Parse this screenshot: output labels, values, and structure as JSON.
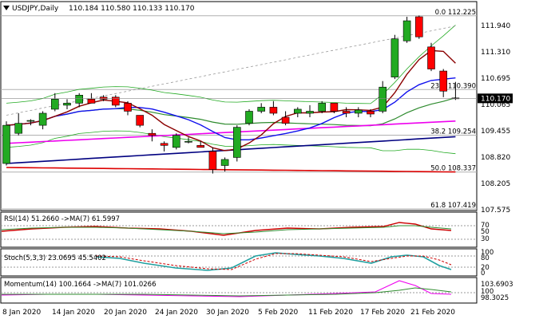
{
  "header": {
    "symbol": "USDJPY,Daily",
    "ohlc": "110.184 110.580 110.133 110.170",
    "collapse_icon": "triangle-down-icon"
  },
  "price_axis": {
    "ticks": [
      "111.940",
      "111.310",
      "110.695",
      "110.065",
      "109.455",
      "108.820",
      "108.205",
      "107.575"
    ],
    "current_price": "110.170",
    "current_price_color": "#000000"
  },
  "fibonacci": [
    {
      "label": "0.0 112.225",
      "price": 112.225
    },
    {
      "label": "23.6 110.390",
      "price": 110.39
    },
    {
      "label": "38.2 109.254",
      "price": 109.254
    },
    {
      "label": "50.0 108.337",
      "price": 108.337
    },
    {
      "label": "61.8 107.419",
      "price": 107.419
    }
  ],
  "x_axis": {
    "labels": [
      "8 Jan 2020",
      "14 Jan 2020",
      "20 Jan 2020",
      "24 Jan 2020",
      "30 Jan 2020",
      "5 Feb 2020",
      "11 Feb 2020",
      "17 Feb 2020",
      "21 Feb 2020"
    ]
  },
  "rsi": {
    "label": "RSI(14) 51.2660  ->MA(7) 61.5997",
    "ticks": [
      "70",
      "50",
      "30"
    ]
  },
  "stoch": {
    "label": "Stoch(5,3,3) 23.0695 45.5402",
    "ticks": [
      "100",
      "80",
      "20",
      "0"
    ]
  },
  "momentum": {
    "label": "Momentum(14) 100.1664  ->MA(7) 101.0266",
    "ticks": [
      "103.6903",
      "100",
      "98.3025"
    ]
  },
  "colors": {
    "bull": "#22aa22",
    "bear": "#ff0000",
    "ma_blue": "#1010ee",
    "ma_darkred": "#8b0000",
    "ma_navy": "#000080",
    "ma_red": "#dd0000",
    "ma_magenta": "#ee00ee",
    "ma_green": "#2e8b2e",
    "ma_violet": "#cc88dd",
    "bollinger": "#22aa22",
    "fib": "#b0b0b0",
    "trend": "#999999",
    "stoch_main": "#20a0a0",
    "stoch_signal": "#cc0000"
  },
  "chart_data": {
    "type": "candlestick",
    "candles": [
      {
        "o": 108.55,
        "h": 109.6,
        "l": 108.5,
        "c": 109.5
      },
      {
        "o": 109.3,
        "h": 109.8,
        "l": 109.25,
        "c": 109.55
      },
      {
        "o": 109.6,
        "h": 109.65,
        "l": 109.5,
        "c": 109.62
      },
      {
        "o": 109.5,
        "h": 109.85,
        "l": 109.4,
        "c": 109.8
      },
      {
        "o": 109.9,
        "h": 110.3,
        "l": 109.85,
        "c": 110.15
      },
      {
        "o": 110.0,
        "h": 110.15,
        "l": 109.9,
        "c": 110.05
      },
      {
        "o": 110.05,
        "h": 110.3,
        "l": 109.95,
        "c": 110.25
      },
      {
        "o": 110.15,
        "h": 110.3,
        "l": 110.05,
        "c": 110.05
      },
      {
        "o": 110.2,
        "h": 110.25,
        "l": 110.1,
        "c": 110.15
      },
      {
        "o": 110.2,
        "h": 110.25,
        "l": 109.95,
        "c": 110.0
      },
      {
        "o": 110.05,
        "h": 110.1,
        "l": 109.75,
        "c": 109.85
      },
      {
        "o": 109.75,
        "h": 109.75,
        "l": 109.45,
        "c": 109.5
      },
      {
        "o": 109.3,
        "h": 109.4,
        "l": 109.1,
        "c": 109.25
      },
      {
        "o": 109.05,
        "h": 109.1,
        "l": 108.85,
        "c": 109.0
      },
      {
        "o": 108.95,
        "h": 109.3,
        "l": 108.9,
        "c": 109.25
      },
      {
        "o": 109.1,
        "h": 109.2,
        "l": 109.05,
        "c": 109.1
      },
      {
        "o": 109.0,
        "h": 109.1,
        "l": 108.95,
        "c": 108.95
      },
      {
        "o": 108.85,
        "h": 108.95,
        "l": 108.3,
        "c": 108.4
      },
      {
        "o": 108.5,
        "h": 108.7,
        "l": 108.35,
        "c": 108.65
      },
      {
        "o": 108.7,
        "h": 109.5,
        "l": 108.6,
        "c": 109.45
      },
      {
        "o": 109.55,
        "h": 109.9,
        "l": 109.5,
        "c": 109.85
      },
      {
        "o": 109.85,
        "h": 110.05,
        "l": 109.8,
        "c": 109.95
      },
      {
        "o": 109.95,
        "h": 110.1,
        "l": 109.75,
        "c": 109.8
      },
      {
        "o": 109.7,
        "h": 109.85,
        "l": 109.5,
        "c": 109.55
      },
      {
        "o": 109.8,
        "h": 109.95,
        "l": 109.7,
        "c": 109.9
      },
      {
        "o": 109.8,
        "h": 110.0,
        "l": 109.7,
        "c": 109.85
      },
      {
        "o": 109.85,
        "h": 110.1,
        "l": 109.8,
        "c": 110.05
      },
      {
        "o": 110.05,
        "h": 110.05,
        "l": 109.8,
        "c": 109.85
      },
      {
        "o": 109.85,
        "h": 109.95,
        "l": 109.7,
        "c": 109.8
      },
      {
        "o": 109.8,
        "h": 109.95,
        "l": 109.7,
        "c": 109.88
      },
      {
        "o": 109.85,
        "h": 109.9,
        "l": 109.7,
        "c": 109.78
      },
      {
        "o": 109.85,
        "h": 110.6,
        "l": 109.8,
        "c": 110.45
      },
      {
        "o": 110.7,
        "h": 111.75,
        "l": 110.65,
        "c": 111.65
      },
      {
        "o": 111.6,
        "h": 112.2,
        "l": 111.55,
        "c": 112.1
      },
      {
        "o": 112.2,
        "h": 112.23,
        "l": 111.65,
        "c": 111.7
      },
      {
        "o": 111.45,
        "h": 111.55,
        "l": 110.85,
        "c": 110.9
      },
      {
        "o": 110.85,
        "h": 110.9,
        "l": 110.2,
        "c": 110.35
      },
      {
        "o": 110.18,
        "h": 110.58,
        "l": 110.13,
        "c": 110.17
      }
    ],
    "ylim": [
      107.419,
      112.5
    ]
  }
}
